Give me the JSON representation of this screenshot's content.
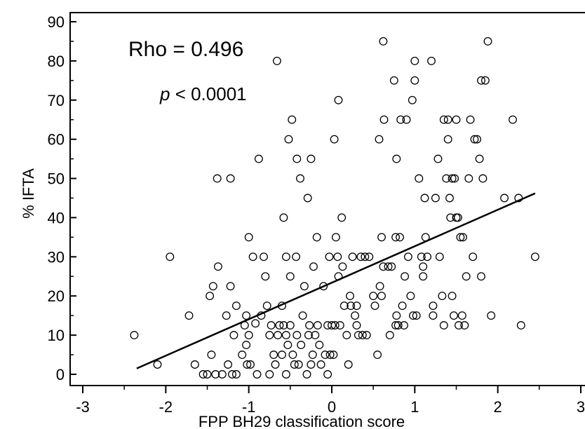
{
  "chart_data": {
    "type": "scatter",
    "title": "",
    "xlabel": "FPP  BH29 classification score",
    "ylabel": "% IFTA",
    "xlim": [
      -3,
      3
    ],
    "ylim": [
      -2,
      92
    ],
    "x_ticks": [
      -3,
      -2,
      -1,
      0,
      1,
      2,
      3
    ],
    "y_ticks": [
      0,
      10,
      20,
      30,
      40,
      50,
      60,
      70,
      80,
      90
    ],
    "x_tick_labels": [
      "-3",
      "-2",
      "-1",
      "0",
      "1",
      "2",
      "3"
    ],
    "y_tick_labels": [
      "0",
      "10",
      "20",
      "30",
      "40",
      "50",
      "60",
      "70",
      "80",
      "90"
    ],
    "annotations": {
      "rho": "Rho = 0.496",
      "p_symbol": "p",
      "p_rest": " < 0.0001"
    },
    "marker": "open-circle",
    "colors": {
      "marker_stroke": "#000000",
      "fit_line": "#000000",
      "background": "#ffffff"
    },
    "fit_line": {
      "x": [
        -2.35,
        2.45
      ],
      "y": [
        1.5,
        46.2
      ]
    },
    "points": [
      [
        -2.38,
        10
      ],
      [
        -2.1,
        2.5
      ],
      [
        -1.95,
        30
      ],
      [
        -1.72,
        15
      ],
      [
        -1.65,
        2.5
      ],
      [
        -1.55,
        0
      ],
      [
        -1.5,
        0
      ],
      [
        -1.47,
        20
      ],
      [
        -1.45,
        5
      ],
      [
        -1.43,
        22.5
      ],
      [
        -1.4,
        0
      ],
      [
        -1.38,
        50
      ],
      [
        -1.37,
        27.5
      ],
      [
        -1.32,
        0
      ],
      [
        -1.27,
        15
      ],
      [
        -1.25,
        2.5
      ],
      [
        -1.22,
        50
      ],
      [
        -1.22,
        22.5
      ],
      [
        -1.2,
        0
      ],
      [
        -1.18,
        10
      ],
      [
        -1.15,
        0
      ],
      [
        -1.15,
        17.5
      ],
      [
        -1.08,
        5
      ],
      [
        -1.05,
        12.5
      ],
      [
        -1.03,
        15
      ],
      [
        -1.03,
        7.5
      ],
      [
        -1.02,
        2.5
      ],
      [
        -1.0,
        35
      ],
      [
        -1.0,
        10
      ],
      [
        -0.98,
        2.5
      ],
      [
        -0.95,
        30
      ],
      [
        -0.92,
        13
      ],
      [
        -0.9,
        0
      ],
      [
        -0.88,
        55
      ],
      [
        -0.85,
        15
      ],
      [
        -0.82,
        30
      ],
      [
        -0.8,
        25
      ],
      [
        -0.78,
        17.5
      ],
      [
        -0.75,
        10
      ],
      [
        -0.75,
        0
      ],
      [
        -0.73,
        12.5
      ],
      [
        -0.7,
        5
      ],
      [
        -0.68,
        2.5
      ],
      [
        -0.66,
        80
      ],
      [
        -0.65,
        10
      ],
      [
        -0.63,
        12.5
      ],
      [
        -0.6,
        17.5
      ],
      [
        -0.6,
        5
      ],
      [
        -0.58,
        40
      ],
      [
        -0.58,
        12.5
      ],
      [
        -0.55,
        30
      ],
      [
        -0.55,
        10
      ],
      [
        -0.55,
        0
      ],
      [
        -0.53,
        7.5
      ],
      [
        -0.52,
        60
      ],
      [
        -0.5,
        12.5
      ],
      [
        -0.5,
        25
      ],
      [
        -0.48,
        65
      ],
      [
        -0.47,
        5
      ],
      [
        -0.45,
        2.5
      ],
      [
        -0.43,
        30
      ],
      [
        -0.42,
        55
      ],
      [
        -0.42,
        10
      ],
      [
        -0.4,
        2.5
      ],
      [
        -0.38,
        50
      ],
      [
        -0.37,
        7.5
      ],
      [
        -0.35,
        15
      ],
      [
        -0.33,
        22.5
      ],
      [
        -0.3,
        0
      ],
      [
        -0.29,
        45
      ],
      [
        -0.28,
        10
      ],
      [
        -0.27,
        12.5
      ],
      [
        -0.25,
        55
      ],
      [
        -0.25,
        2.5
      ],
      [
        -0.23,
        5
      ],
      [
        -0.22,
        27.5
      ],
      [
        -0.2,
        10
      ],
      [
        -0.18,
        35
      ],
      [
        -0.17,
        12.5
      ],
      [
        -0.15,
        7.5
      ],
      [
        -0.13,
        2.5
      ],
      [
        -0.1,
        22.5
      ],
      [
        -0.08,
        5
      ],
      [
        -0.05,
        12.5
      ],
      [
        -0.05,
        0
      ],
      [
        -0.03,
        30
      ],
      [
        -0.02,
        5
      ],
      [
        0.0,
        12.5
      ],
      [
        0.02,
        5
      ],
      [
        0.03,
        60
      ],
      [
        0.04,
        12.5
      ],
      [
        0.05,
        35
      ],
      [
        0.07,
        30
      ],
      [
        0.08,
        70
      ],
      [
        0.08,
        25
      ],
      [
        0.1,
        12.5
      ],
      [
        0.12,
        40
      ],
      [
        0.13,
        27.5
      ],
      [
        0.15,
        17.5
      ],
      [
        0.18,
        10
      ],
      [
        0.2,
        2.5
      ],
      [
        0.22,
        20
      ],
      [
        0.23,
        17.5
      ],
      [
        0.25,
        30
      ],
      [
        0.28,
        15
      ],
      [
        0.3,
        12.5
      ],
      [
        0.3,
        17.5
      ],
      [
        0.32,
        10
      ],
      [
        0.35,
        30
      ],
      [
        0.37,
        10
      ],
      [
        0.4,
        30
      ],
      [
        0.42,
        10
      ],
      [
        0.45,
        30
      ],
      [
        0.5,
        20
      ],
      [
        0.52,
        17.5
      ],
      [
        0.55,
        5
      ],
      [
        0.57,
        60
      ],
      [
        0.58,
        22.5
      ],
      [
        0.6,
        35
      ],
      [
        0.6,
        20
      ],
      [
        0.62,
        85
      ],
      [
        0.62,
        27.5
      ],
      [
        0.63,
        65
      ],
      [
        0.68,
        27.5
      ],
      [
        0.7,
        10
      ],
      [
        0.72,
        27.5
      ],
      [
        0.75,
        75
      ],
      [
        0.77,
        35
      ],
      [
        0.77,
        12.5
      ],
      [
        0.78,
        55
      ],
      [
        0.78,
        15
      ],
      [
        0.8,
        12.5
      ],
      [
        0.82,
        35
      ],
      [
        0.83,
        65
      ],
      [
        0.85,
        17.5
      ],
      [
        0.87,
        12.5
      ],
      [
        0.88,
        25
      ],
      [
        0.9,
        65
      ],
      [
        0.92,
        30
      ],
      [
        0.95,
        20
      ],
      [
        0.97,
        70
      ],
      [
        0.98,
        15
      ],
      [
        1.0,
        75
      ],
      [
        1.0,
        80
      ],
      [
        1.02,
        15
      ],
      [
        1.05,
        50
      ],
      [
        1.08,
        30
      ],
      [
        1.1,
        25
      ],
      [
        1.1,
        27.5
      ],
      [
        1.12,
        45
      ],
      [
        1.13,
        35
      ],
      [
        1.15,
        30
      ],
      [
        1.2,
        80
      ],
      [
        1.22,
        15
      ],
      [
        1.22,
        17.5
      ],
      [
        1.25,
        45
      ],
      [
        1.28,
        55
      ],
      [
        1.3,
        30
      ],
      [
        1.33,
        20
      ],
      [
        1.35,
        65
      ],
      [
        1.35,
        12.5
      ],
      [
        1.38,
        50
      ],
      [
        1.4,
        65
      ],
      [
        1.4,
        60
      ],
      [
        1.42,
        45
      ],
      [
        1.43,
        40
      ],
      [
        1.45,
        50
      ],
      [
        1.45,
        20
      ],
      [
        1.47,
        15
      ],
      [
        1.48,
        50
      ],
      [
        1.5,
        65
      ],
      [
        1.5,
        40
      ],
      [
        1.52,
        40
      ],
      [
        1.53,
        12.5
      ],
      [
        1.55,
        35
      ],
      [
        1.57,
        15
      ],
      [
        1.58,
        35
      ],
      [
        1.6,
        12.5
      ],
      [
        1.62,
        25
      ],
      [
        1.65,
        50
      ],
      [
        1.67,
        65
      ],
      [
        1.7,
        30
      ],
      [
        1.72,
        60
      ],
      [
        1.75,
        60
      ],
      [
        1.78,
        55
      ],
      [
        1.8,
        75
      ],
      [
        1.8,
        25
      ],
      [
        1.82,
        50
      ],
      [
        1.85,
        75
      ],
      [
        1.88,
        85
      ],
      [
        1.92,
        15
      ],
      [
        2.08,
        45
      ],
      [
        2.18,
        65
      ],
      [
        2.25,
        45
      ],
      [
        2.28,
        12.5
      ],
      [
        2.45,
        30
      ]
    ]
  }
}
